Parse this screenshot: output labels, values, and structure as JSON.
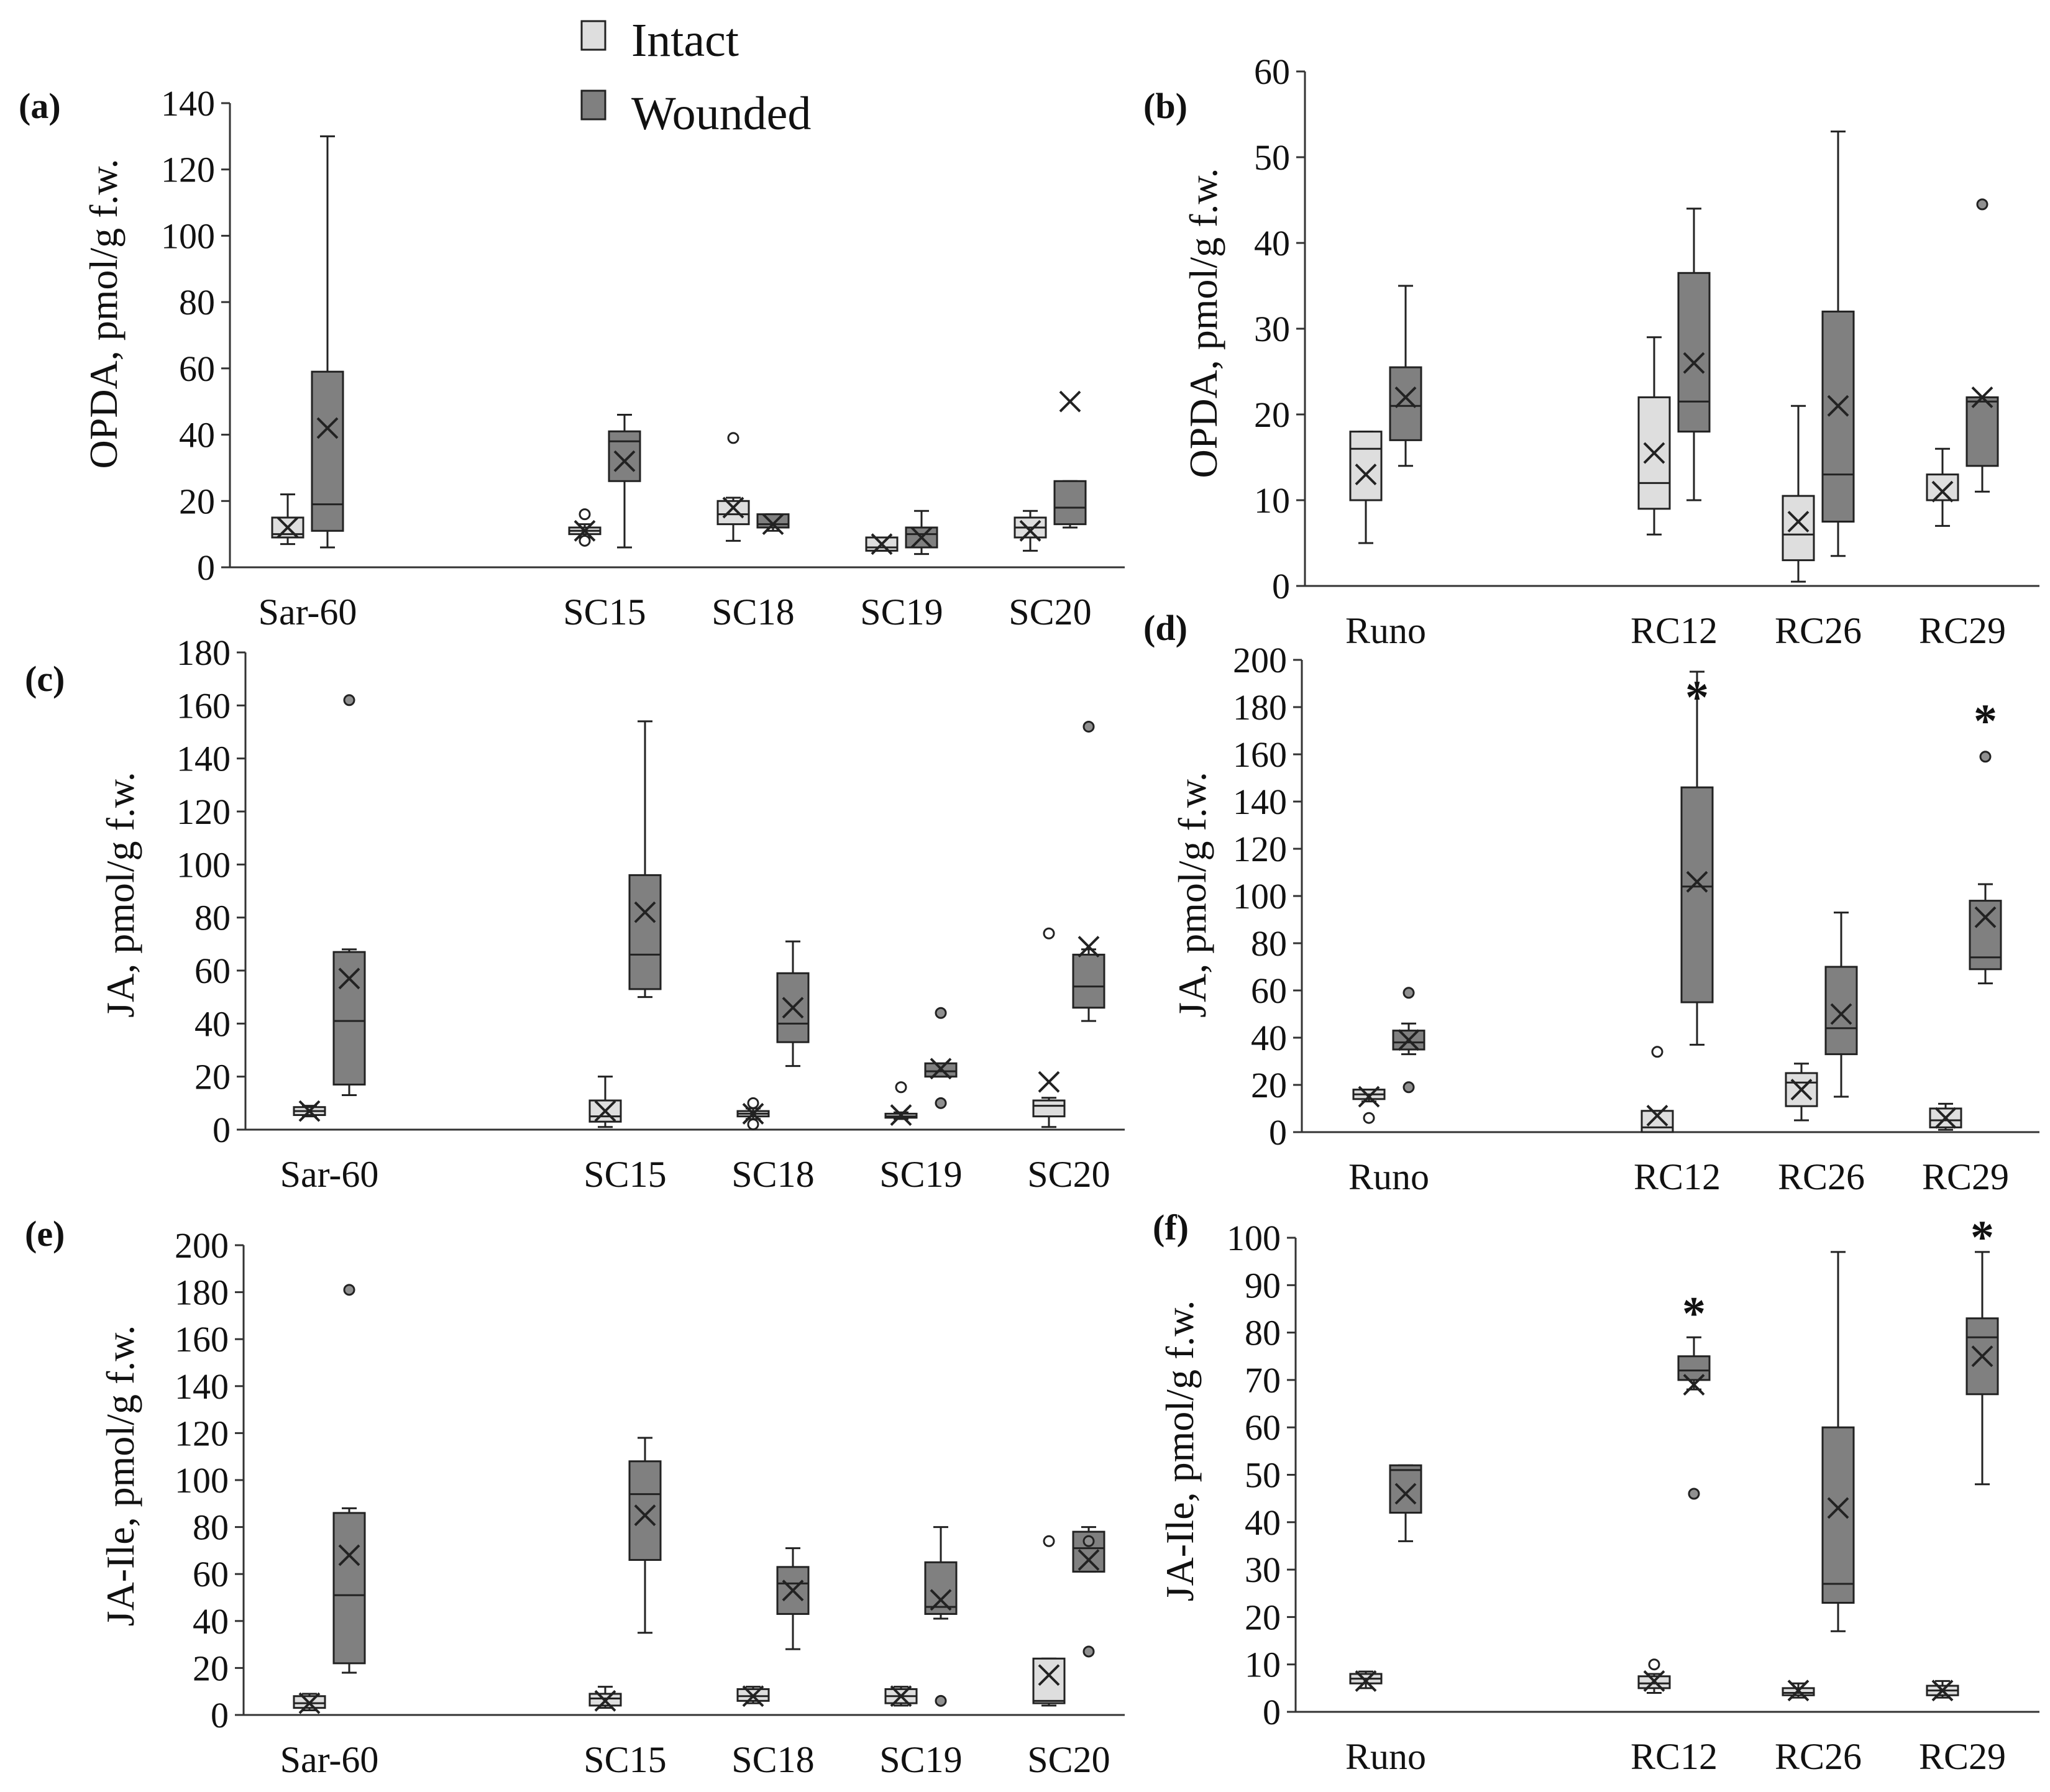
{
  "legend": [
    {
      "label": "Intact",
      "color": "#dedede"
    },
    {
      "label": "Wounded",
      "color": "#808080"
    }
  ],
  "colors": {
    "intact": "#dedede",
    "wounded": "#808080",
    "stroke": "#222222",
    "axis": "#333333"
  },
  "chart_data": [
    {
      "panel": "(a)",
      "type": "boxplot",
      "ylabel": "OPDA, pmol/g f.w.",
      "ylim": [
        0,
        140
      ],
      "yticks": [
        0,
        20,
        40,
        60,
        80,
        100,
        120,
        140
      ],
      "categories": [
        "Sar-60",
        "SC15",
        "SC18",
        "SC19",
        "SC20"
      ],
      "category_positions": [
        0,
        2,
        3,
        4,
        5
      ],
      "series": [
        {
          "name": "Intact",
          "boxes": [
            {
              "min": 7,
              "q1": 9,
              "median": 10,
              "q3": 15,
              "max": 22,
              "mean": 12,
              "outliers": []
            },
            {
              "min": 9,
              "q1": 10,
              "median": 11,
              "q3": 12,
              "max": 13,
              "mean": 11,
              "outliers": [
                16,
                8
              ]
            },
            {
              "min": 8,
              "q1": 13,
              "median": 16,
              "q3": 20,
              "max": 21,
              "mean": 18,
              "outliers": [
                39
              ]
            },
            {
              "min": 5,
              "q1": 5,
              "median": 6,
              "q3": 9,
              "max": 9,
              "mean": 7,
              "outliers": []
            },
            {
              "min": 5,
              "q1": 9,
              "median": 12,
              "q3": 15,
              "max": 17,
              "mean": 11,
              "outliers": []
            }
          ]
        },
        {
          "name": "Wounded",
          "boxes": [
            {
              "min": 6,
              "q1": 11,
              "median": 19,
              "q3": 59,
              "max": 130,
              "mean": 42,
              "outliers": []
            },
            {
              "min": 6,
              "q1": 26,
              "median": 38,
              "q3": 41,
              "max": 46,
              "mean": 32,
              "outliers": []
            },
            {
              "min": 11,
              "q1": 12,
              "median": 13,
              "q3": 16,
              "max": 16,
              "mean": 13,
              "outliers": []
            },
            {
              "min": 4,
              "q1": 6,
              "median": 10,
              "q3": 12,
              "max": 17,
              "mean": 9,
              "outliers": []
            },
            {
              "min": 12,
              "q1": 13,
              "median": 18,
              "q3": 26,
              "max": 26,
              "mean": 50,
              "outliers": []
            }
          ]
        }
      ],
      "stars": []
    },
    {
      "panel": "(b)",
      "type": "boxplot",
      "ylabel": "OPDA, pmol/g f.w.",
      "ylim": [
        0,
        60
      ],
      "yticks": [
        0,
        10,
        20,
        30,
        40,
        50,
        60
      ],
      "categories": [
        "Runo",
        "RC12",
        "RC26",
        "RC29"
      ],
      "category_positions": [
        0,
        2,
        3,
        4
      ],
      "series": [
        {
          "name": "Intact",
          "boxes": [
            {
              "min": 5,
              "q1": 10,
              "median": 16,
              "q3": 18,
              "max": 18,
              "mean": 13,
              "outliers": []
            },
            {
              "min": 6,
              "q1": 9,
              "median": 12,
              "q3": 22,
              "max": 29,
              "mean": 15.5,
              "outliers": []
            },
            {
              "min": 0.5,
              "q1": 3,
              "median": 6,
              "q3": 10.5,
              "max": 21,
              "mean": 7.5,
              "outliers": []
            },
            {
              "min": 7,
              "q1": 10,
              "median": 10,
              "q3": 13,
              "max": 16,
              "mean": 11,
              "outliers": []
            }
          ]
        },
        {
          "name": "Wounded",
          "boxes": [
            {
              "min": 14,
              "q1": 17,
              "median": 21,
              "q3": 25.5,
              "max": 35,
              "mean": 22,
              "outliers": []
            },
            {
              "min": 10,
              "q1": 18,
              "median": 21.5,
              "q3": 36.5,
              "max": 44,
              "mean": 26,
              "outliers": []
            },
            {
              "min": 3.5,
              "q1": 7.5,
              "median": 13,
              "q3": 32,
              "max": 53,
              "mean": 21,
              "outliers": []
            },
            {
              "min": 11,
              "q1": 14,
              "median": 21.5,
              "q3": 22,
              "max": 22,
              "mean": 22,
              "outliers": [
                44.5
              ]
            }
          ]
        }
      ],
      "stars": []
    },
    {
      "panel": "(c)",
      "type": "boxplot",
      "ylabel": "JA, pmol/g f.w.",
      "ylim": [
        0,
        180
      ],
      "yticks": [
        0,
        20,
        40,
        60,
        80,
        100,
        120,
        140,
        160,
        180
      ],
      "categories": [
        "Sar-60",
        "SC15",
        "SC18",
        "SC19",
        "SC20"
      ],
      "category_positions": [
        0,
        2,
        3,
        4,
        5
      ],
      "series": [
        {
          "name": "Intact",
          "boxes": [
            {
              "min": 5,
              "q1": 5.5,
              "median": 7,
              "q3": 8.5,
              "max": 9,
              "mean": 7,
              "outliers": []
            },
            {
              "min": 1,
              "q1": 3,
              "median": 5,
              "q3": 11,
              "max": 20,
              "mean": 7,
              "outliers": []
            },
            {
              "min": 4,
              "q1": 5,
              "median": 6,
              "q3": 7,
              "max": 8,
              "mean": 6,
              "outliers": [
                10,
                2
              ]
            },
            {
              "min": 4,
              "q1": 4.5,
              "median": 5,
              "q3": 6,
              "max": 6.5,
              "mean": 5.5,
              "outliers": [
                16
              ]
            },
            {
              "min": 1,
              "q1": 5,
              "median": 9,
              "q3": 11,
              "max": 12,
              "mean": 18,
              "outliers": [
                74
              ]
            }
          ]
        },
        {
          "name": "Wounded",
          "boxes": [
            {
              "min": 13,
              "q1": 17,
              "median": 41,
              "q3": 67,
              "max": 68,
              "mean": 57,
              "outliers": [
                162
              ]
            },
            {
              "min": 50,
              "q1": 53,
              "median": 66,
              "q3": 96,
              "max": 154,
              "mean": 82,
              "outliers": []
            },
            {
              "min": 24,
              "q1": 33,
              "median": 40,
              "q3": 59,
              "max": 71,
              "mean": 46,
              "outliers": []
            },
            {
              "min": 20,
              "q1": 20,
              "median": 22,
              "q3": 25,
              "max": 25,
              "mean": 23,
              "outliers": [
                44,
                10
              ]
            },
            {
              "min": 41,
              "q1": 46,
              "median": 54,
              "q3": 66,
              "max": 68,
              "mean": 69,
              "outliers": [
                152
              ]
            }
          ]
        }
      ],
      "stars": []
    },
    {
      "panel": "(d)",
      "type": "boxplot",
      "ylabel": "JA, pmol/g f.w.",
      "ylim": [
        0,
        200
      ],
      "yticks": [
        0,
        20,
        40,
        60,
        80,
        100,
        120,
        140,
        160,
        180,
        200
      ],
      "categories": [
        "Runo",
        "RC12",
        "RC26",
        "RC29"
      ],
      "category_positions": [
        0,
        2,
        3,
        4
      ],
      "series": [
        {
          "name": "Intact",
          "boxes": [
            {
              "min": 13,
              "q1": 14,
              "median": 16,
              "q3": 18,
              "max": 18,
              "mean": 15,
              "outliers": [
                6
              ]
            },
            {
              "min": 0,
              "q1": 0,
              "median": 2,
              "q3": 9,
              "max": 9,
              "mean": 7,
              "outliers": [
                34
              ]
            },
            {
              "min": 5,
              "q1": 11,
              "median": 21,
              "q3": 25,
              "max": 29,
              "mean": 18,
              "outliers": []
            },
            {
              "min": 1,
              "q1": 2,
              "median": 5,
              "q3": 10,
              "max": 12,
              "mean": 6,
              "outliers": []
            }
          ]
        },
        {
          "name": "Wounded",
          "boxes": [
            {
              "min": 33,
              "q1": 35,
              "median": 38,
              "q3": 43,
              "max": 46,
              "mean": 39,
              "outliers": [
                59,
                19
              ]
            },
            {
              "min": 37,
              "q1": 55,
              "median": 104,
              "q3": 146,
              "max": 195,
              "mean": 106,
              "outliers": []
            },
            {
              "min": 15,
              "q1": 33,
              "median": 44,
              "q3": 70,
              "max": 93,
              "mean": 50,
              "outliers": []
            },
            {
              "min": 63,
              "q1": 69,
              "median": 74,
              "q3": 98,
              "max": 105,
              "mean": 91,
              "outliers": [
                159
              ]
            }
          ]
        }
      ],
      "stars": [
        {
          "category": "RC12",
          "value": 188,
          "label": "*"
        },
        {
          "category": "RC29",
          "value": 178,
          "label": "*"
        }
      ]
    },
    {
      "panel": "(e)",
      "type": "boxplot",
      "ylabel": "JA-Ile, pmol/g f.w.",
      "ylim": [
        0,
        200
      ],
      "yticks": [
        0,
        20,
        40,
        60,
        80,
        100,
        120,
        140,
        160,
        180,
        200
      ],
      "categories": [
        "Sar-60",
        "SC15",
        "SC18",
        "SC19",
        "SC20"
      ],
      "category_positions": [
        0,
        2,
        3,
        4,
        5
      ],
      "series": [
        {
          "name": "Intact",
          "boxes": [
            {
              "min": 2,
              "q1": 3,
              "median": 5,
              "q3": 8,
              "max": 9,
              "mean": 5,
              "outliers": []
            },
            {
              "min": 3,
              "q1": 4,
              "median": 7,
              "q3": 9,
              "max": 12,
              "mean": 6,
              "outliers": []
            },
            {
              "min": 5,
              "q1": 6,
              "median": 8,
              "q3": 11,
              "max": 12,
              "mean": 8,
              "outliers": []
            },
            {
              "min": 4,
              "q1": 5,
              "median": 8,
              "q3": 11,
              "max": 12,
              "mean": 8,
              "outliers": []
            },
            {
              "min": 4,
              "q1": 5,
              "median": 6,
              "q3": 24,
              "max": 24,
              "mean": 17,
              "outliers": [
                74
              ]
            }
          ]
        },
        {
          "name": "Wounded",
          "boxes": [
            {
              "min": 18,
              "q1": 22,
              "median": 51,
              "q3": 86,
              "max": 88,
              "mean": 68,
              "outliers": [
                181
              ]
            },
            {
              "min": 35,
              "q1": 66,
              "median": 94,
              "q3": 108,
              "max": 118,
              "mean": 85,
              "outliers": []
            },
            {
              "min": 28,
              "q1": 43,
              "median": 56,
              "q3": 63,
              "max": 71,
              "mean": 53,
              "outliers": []
            },
            {
              "min": 41,
              "q1": 43,
              "median": 46,
              "q3": 65,
              "max": 80,
              "mean": 49,
              "outliers": [
                6
              ]
            },
            {
              "min": 61,
              "q1": 61,
              "median": 71,
              "q3": 78,
              "max": 80,
              "mean": 66,
              "outliers": [
                74,
                27
              ]
            }
          ]
        }
      ],
      "stars": []
    },
    {
      "panel": "(f)",
      "type": "boxplot",
      "ylabel": "JA-Ile, pmol/g f.w.",
      "ylim": [
        0,
        100
      ],
      "yticks": [
        0,
        10,
        20,
        30,
        40,
        50,
        60,
        70,
        80,
        90,
        100
      ],
      "categories": [
        "Runo",
        "RC12",
        "RC26",
        "RC29"
      ],
      "category_positions": [
        0,
        2,
        3,
        4
      ],
      "series": [
        {
          "name": "Intact",
          "boxes": [
            {
              "min": 5,
              "q1": 6,
              "median": 7,
              "q3": 8,
              "max": 8.5,
              "mean": 6.5,
              "outliers": []
            },
            {
              "min": 4,
              "q1": 5,
              "median": 6,
              "q3": 7.5,
              "max": 8,
              "mean": 6.5,
              "outliers": [
                10
              ]
            },
            {
              "min": 3,
              "q1": 3.5,
              "median": 4,
              "q3": 5,
              "max": 6,
              "mean": 4.5,
              "outliers": []
            },
            {
              "min": 3,
              "q1": 3.5,
              "median": 4.5,
              "q3": 5.5,
              "max": 6.5,
              "mean": 4.5,
              "outliers": []
            }
          ]
        },
        {
          "name": "Wounded",
          "boxes": [
            {
              "min": 36,
              "q1": 42,
              "median": 51,
              "q3": 52,
              "max": 52,
              "mean": 46,
              "outliers": []
            },
            {
              "min": 68,
              "q1": 70,
              "median": 72,
              "q3": 75,
              "max": 79,
              "mean": 69,
              "outliers": [
                46
              ]
            },
            {
              "min": 17,
              "q1": 23,
              "median": 27,
              "q3": 60,
              "max": 97,
              "mean": 43,
              "outliers": []
            },
            {
              "min": 48,
              "q1": 67,
              "median": 79,
              "q3": 83,
              "max": 97,
              "mean": 75,
              "outliers": []
            }
          ]
        }
      ],
      "stars": [
        {
          "category": "RC12",
          "value": 86,
          "label": "*"
        },
        {
          "category": "RC29",
          "value": 102,
          "label": "*"
        }
      ]
    }
  ]
}
